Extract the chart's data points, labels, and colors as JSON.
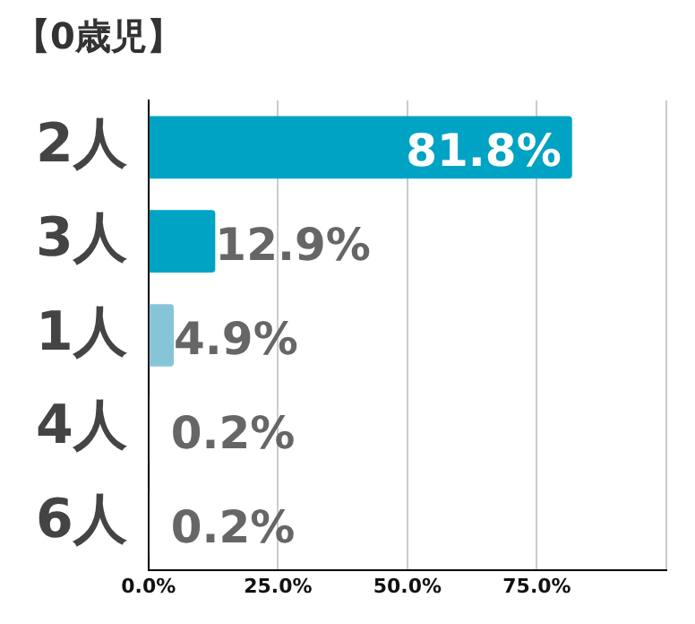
{
  "chart_data": {
    "type": "bar",
    "orientation": "horizontal",
    "title": "【0歳児】",
    "categories": [
      "2人",
      "3人",
      "1人",
      "4人",
      "6人"
    ],
    "values": [
      81.8,
      12.9,
      4.9,
      0.2,
      0.2
    ],
    "colors": [
      "#00a3c4",
      "#00a3c4",
      "#86c5d8",
      "#86c5d8",
      "#86c5d8"
    ],
    "value_labels": [
      "81.8%",
      "12.9%",
      "4.9%",
      "0.2%",
      "0.2%"
    ],
    "xlim": [
      0,
      100
    ],
    "xticks": [
      {
        "value": 0,
        "label": "0.0%"
      },
      {
        "value": 25,
        "label": "25.0%"
      },
      {
        "value": 50,
        "label": "50.0%"
      },
      {
        "value": 75,
        "label": "75.0%"
      },
      {
        "value": 100,
        "label": null
      }
    ],
    "grid": "x",
    "legend": false
  }
}
